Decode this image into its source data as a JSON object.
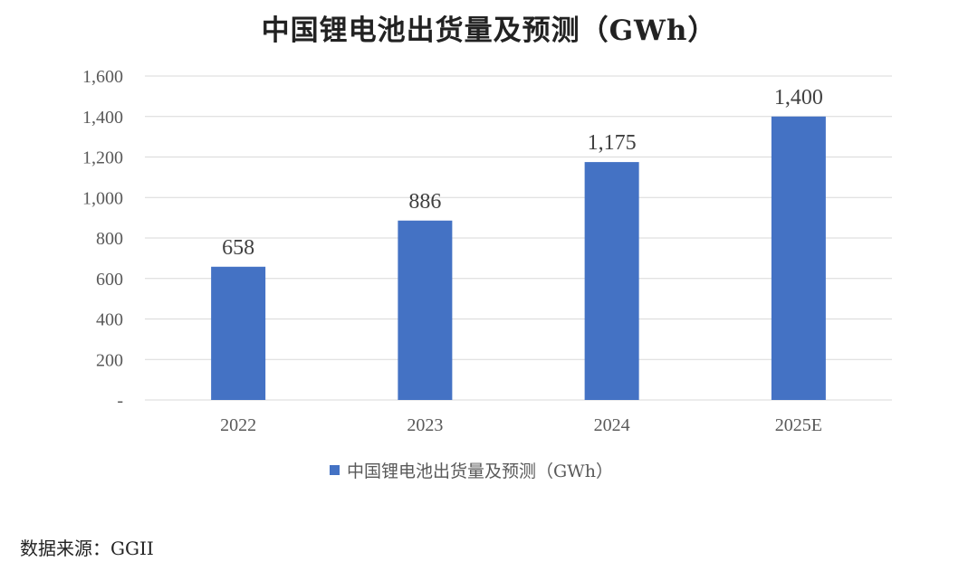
{
  "title": "中国锂电池出货量及预测（GWh）",
  "source": "数据来源：GGII",
  "colors": {
    "bar": "#4472C4",
    "grid": "#D9D9D9",
    "text": "#595959"
  },
  "chart_data": {
    "type": "bar",
    "title": "中国锂电池出货量及预测（GWh）",
    "categories": [
      "2022",
      "2023",
      "2024",
      "2025E"
    ],
    "series": [
      {
        "name": "中国锂电池出货量及预测（GWh）",
        "values": [
          658,
          886,
          1175,
          1400
        ]
      }
    ],
    "data_labels": [
      "658",
      "886",
      "1,175",
      "1,400"
    ],
    "ylim": [
      0,
      1600
    ],
    "yticks": [
      0,
      200,
      400,
      600,
      800,
      1000,
      1200,
      1400,
      1600
    ],
    "ytick_labels": [
      "-",
      "200",
      "400",
      "600",
      "800",
      "1,000",
      "1,200",
      "1,400",
      "1,600"
    ],
    "grid": true,
    "legend_position": "bottom",
    "xlabel": "",
    "ylabel": ""
  }
}
